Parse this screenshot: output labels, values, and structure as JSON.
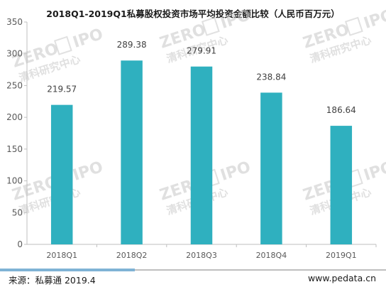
{
  "chart_data": {
    "type": "bar",
    "title": "2018Q1-2019Q1私募股权投资市场平均投资金额比较（人民币百万元）",
    "categories": [
      "2018Q1",
      "2018Q2",
      "2018Q3",
      "2018Q4",
      "2019Q1"
    ],
    "values": [
      219.57,
      289.38,
      279.91,
      238.84,
      186.64
    ],
    "value_labels": [
      "219.57",
      "289.38",
      "279.91",
      "238.84",
      "186.64"
    ],
    "ylim": [
      0,
      350
    ],
    "yticks": [
      0,
      50,
      100,
      150,
      200,
      250,
      300,
      350
    ],
    "ytick_labels": [
      "0",
      "50",
      "100",
      "150",
      "200",
      "250",
      "300",
      "350"
    ],
    "xlabel": "",
    "ylabel": "",
    "grid": false,
    "legend": "none",
    "bar_color": "#2fb0bf"
  },
  "watermark": {
    "brand": "ZERO",
    "brand_suffix": "IPO",
    "cn": "清科研究中心"
  },
  "footer": {
    "source": "来源：私募通 2019.4",
    "url": "www.pedata.cn",
    "line_colors": [
      "#7fb3d5",
      "#bfbfbf"
    ]
  }
}
